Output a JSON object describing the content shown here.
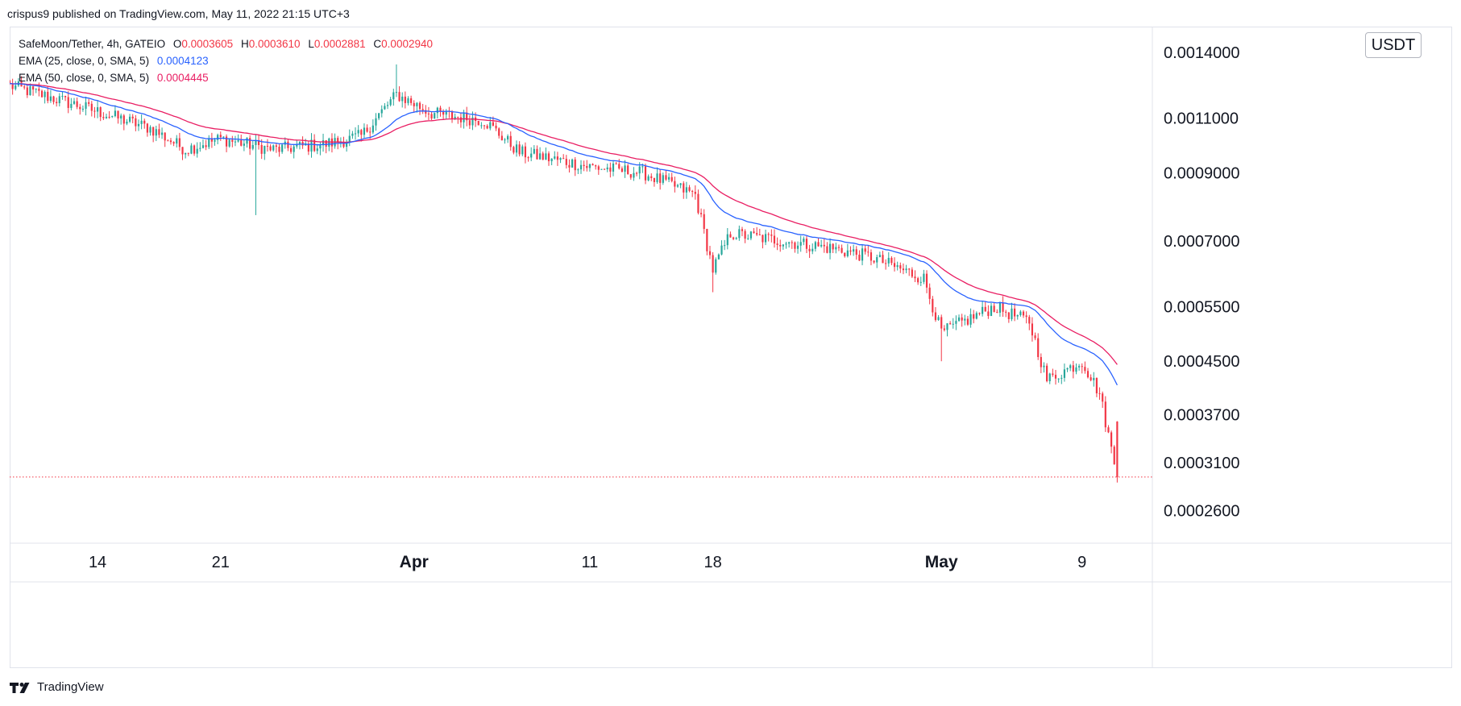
{
  "header": {
    "publisher_line": "crispus9 published on TradingView.com, May 11, 2022 21:15 UTC+3"
  },
  "legend": {
    "symbol": "SafeMoon/Tether, 4h, GATEIO",
    "o_label": "O",
    "o_value": "0.0003605",
    "h_label": "H",
    "h_value": "0.0003610",
    "l_label": "L",
    "l_value": "0.0002881",
    "c_label": "C",
    "c_value": "0.0002940",
    "ema25_label": "EMA (25, close, 0, SMA, 5)",
    "ema25_value": "0.0004123",
    "ema50_label": "EMA (50, close, 0, SMA, 5)",
    "ema50_value": "0.0004445"
  },
  "currency_button": "USDT",
  "footer": {
    "brand": "TradingView"
  },
  "colors": {
    "up": "#26a69a",
    "down": "#f23645",
    "ema25": "#2962ff",
    "ema50": "#e91e63",
    "grid": "#e0e3eb"
  },
  "chart_data": {
    "type": "candlestick",
    "title": "SafeMoon/Tether, 4h, GATEIO",
    "scale": "log",
    "y_ticks": [
      "0.0014000",
      "0.0011000",
      "0.0009000",
      "0.0007000",
      "0.0005500",
      "0.0004500",
      "0.0003700",
      "0.0003100",
      "0.0002600"
    ],
    "x_ticks": [
      "14",
      "21",
      "Apr",
      "11",
      "18",
      "May",
      "9"
    ],
    "bold_x_ticks": [
      "Apr",
      "May"
    ],
    "x_range": [
      "2022-03-09",
      "2022-05-13"
    ],
    "last_close": 0.000294,
    "anchors_close": [
      [
        "2022-03-09",
        0.00124
      ],
      [
        "2022-03-13",
        0.00115
      ],
      [
        "2022-03-17",
        0.00106
      ],
      [
        "2022-03-19",
        0.00098
      ],
      [
        "2022-03-21",
        0.00102
      ],
      [
        "2022-03-24",
        0.00098
      ],
      [
        "2022-03-27",
        0.001
      ],
      [
        "2022-03-29",
        0.00103
      ],
      [
        "2022-03-31",
        0.0012
      ],
      [
        "2022-04-02",
        0.00112
      ],
      [
        "2022-04-05",
        0.00109
      ],
      [
        "2022-04-07",
        0.00097
      ],
      [
        "2022-04-11",
        0.00092
      ],
      [
        "2022-04-14",
        0.0009
      ],
      [
        "2022-04-17",
        0.00083
      ],
      [
        "2022-04-18",
        0.00063
      ],
      [
        "2022-04-19",
        0.00072
      ],
      [
        "2022-04-22",
        0.0007
      ],
      [
        "2022-04-25",
        0.00068
      ],
      [
        "2022-04-27",
        0.00066
      ],
      [
        "2022-04-30",
        0.00061
      ],
      [
        "2022-05-01",
        0.0005
      ],
      [
        "2022-05-04",
        0.00055
      ],
      [
        "2022-05-06",
        0.00052
      ],
      [
        "2022-05-07",
        0.00042
      ],
      [
        "2022-05-09",
        0.00045
      ],
      [
        "2022-05-10",
        0.0004
      ],
      [
        "2022-05-11",
        0.000294
      ]
    ],
    "spikes": [
      {
        "date": "2022-03-23",
        "low": 0.00077
      },
      {
        "date": "2022-03-31",
        "high": 0.00134
      },
      {
        "date": "2022-04-18",
        "low": 0.00058
      },
      {
        "date": "2022-05-01",
        "low": 0.00045
      },
      {
        "date": "2022-05-11",
        "low": 0.0002881
      }
    ],
    "series": [
      {
        "name": "EMA (25, close, 0, SMA, 5)",
        "last": 0.0004123
      },
      {
        "name": "EMA (50, close, 0, SMA, 5)",
        "last": 0.0004445
      }
    ]
  }
}
